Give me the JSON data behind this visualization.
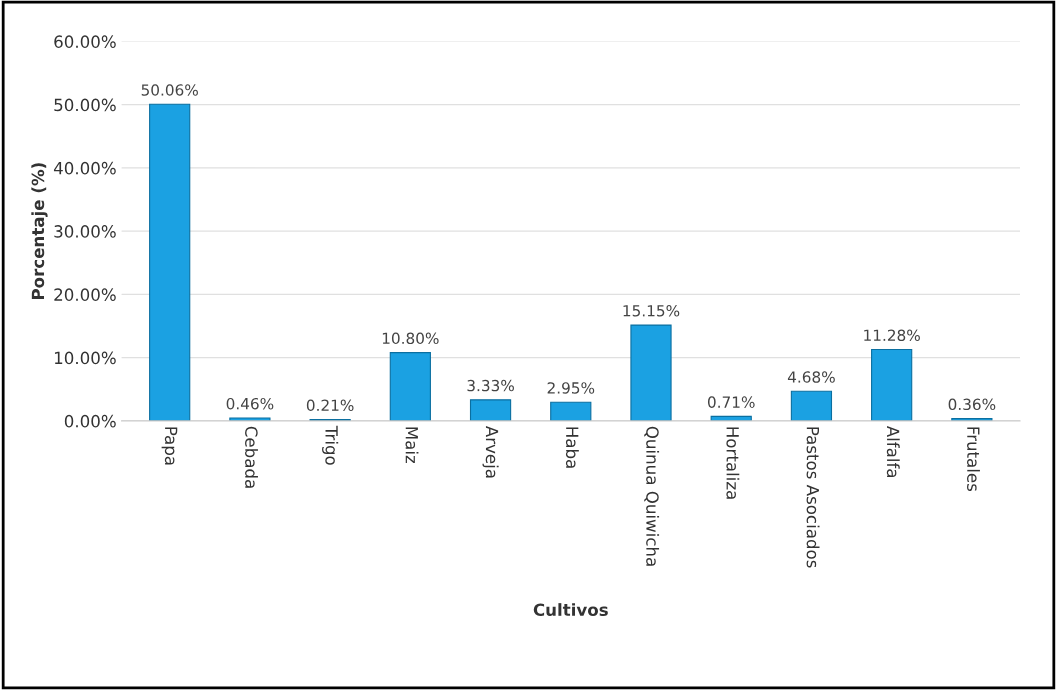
{
  "chart_data": {
    "type": "bar",
    "xlabel": "Cultivos",
    "ylabel": "Porcentaje (%)",
    "categories": [
      "Papa",
      "Cebada",
      "Trigo",
      "Maiz",
      "Arveja",
      "Haba",
      "Quinua Quiwicha",
      "Hortaliza",
      "Pastos Asociados",
      "Alfalfa",
      "Frutales"
    ],
    "values": [
      50.06,
      0.46,
      0.21,
      10.8,
      3.33,
      2.95,
      15.15,
      0.71,
      4.68,
      11.28,
      0.36
    ],
    "value_labels": [
      "50.06%",
      "0.46%",
      "0.21%",
      "10.80%",
      "3.33%",
      "2.95%",
      "15.15%",
      "0.71%",
      "4.68%",
      "11.28%",
      "0.36%"
    ],
    "color": "#1ba1e2",
    "ylim": [
      0,
      60
    ],
    "yticks": [
      {
        "value": 0,
        "label": "0.00%"
      },
      {
        "value": 10,
        "label": "10.00%"
      },
      {
        "value": 20,
        "label": "20.00%"
      },
      {
        "value": 30,
        "label": "30.00%"
      },
      {
        "value": 40,
        "label": "40.00%"
      },
      {
        "value": 50,
        "label": "50.00%"
      },
      {
        "value": 60,
        "label": "60.00%"
      }
    ],
    "grid": "y",
    "legend": false
  }
}
